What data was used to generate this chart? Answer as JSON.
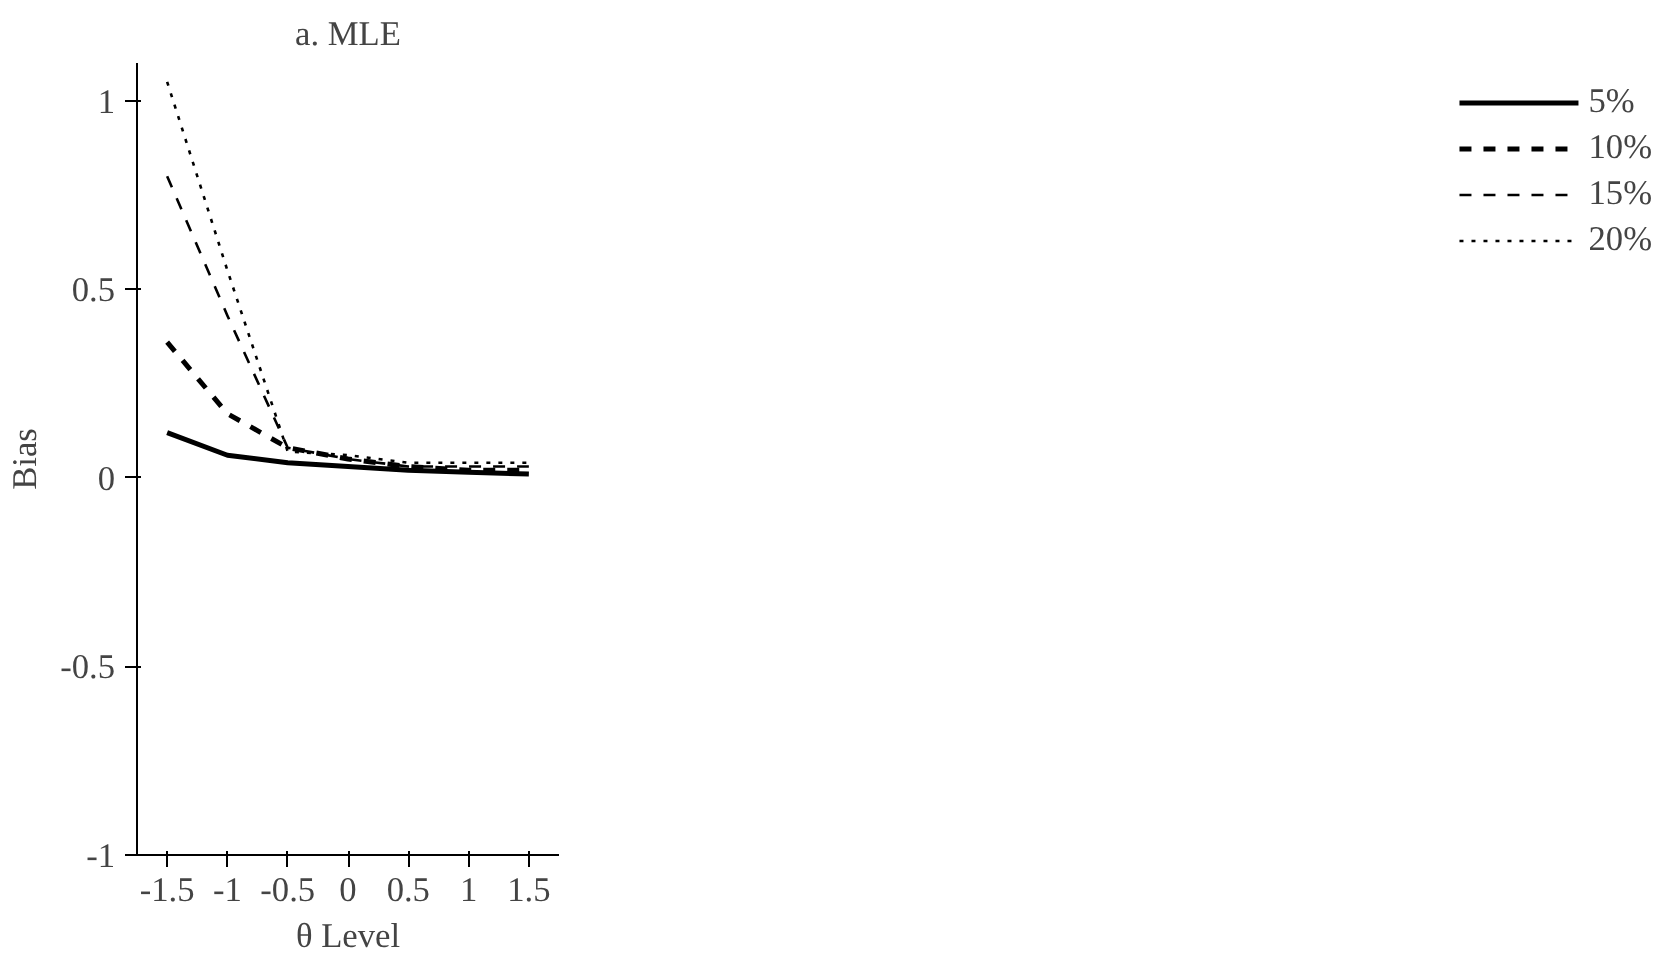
{
  "chart_data": {
    "type": "line",
    "title": "a. MLE",
    "xlabel": "θ Level",
    "ylabel": "Bias",
    "categories": [
      "-1.5",
      "-1",
      "-0.5",
      "0",
      "0.5",
      "1",
      "1.5"
    ],
    "series": [
      {
        "name": "5%",
        "color": "#000000",
        "line_style": "solid",
        "values": [
          0.12,
          0.06,
          0.04,
          0.03,
          0.02,
          0.015,
          0.01
        ]
      },
      {
        "name": "10%",
        "color": "#000000",
        "line_style": "dashed",
        "values": [
          0.36,
          0.17,
          0.08,
          0.05,
          0.03,
          0.02,
          0.02
        ]
      },
      {
        "name": "15%",
        "color": "#000000",
        "line_style": "dashed",
        "values": [
          0.8,
          0.43,
          0.08,
          0.05,
          0.03,
          0.03,
          0.03
        ]
      },
      {
        "name": "20%",
        "color": "#000000",
        "line_style": "dotted",
        "values": [
          1.05,
          0.55,
          0.07,
          0.06,
          0.04,
          0.04,
          0.04
        ]
      }
    ],
    "ylim": [
      -1,
      1.1
    ],
    "yticks": [
      -1,
      -0.5,
      0,
      0.5,
      1
    ],
    "grid": false,
    "legend": "top right",
    "marker": "none"
  }
}
